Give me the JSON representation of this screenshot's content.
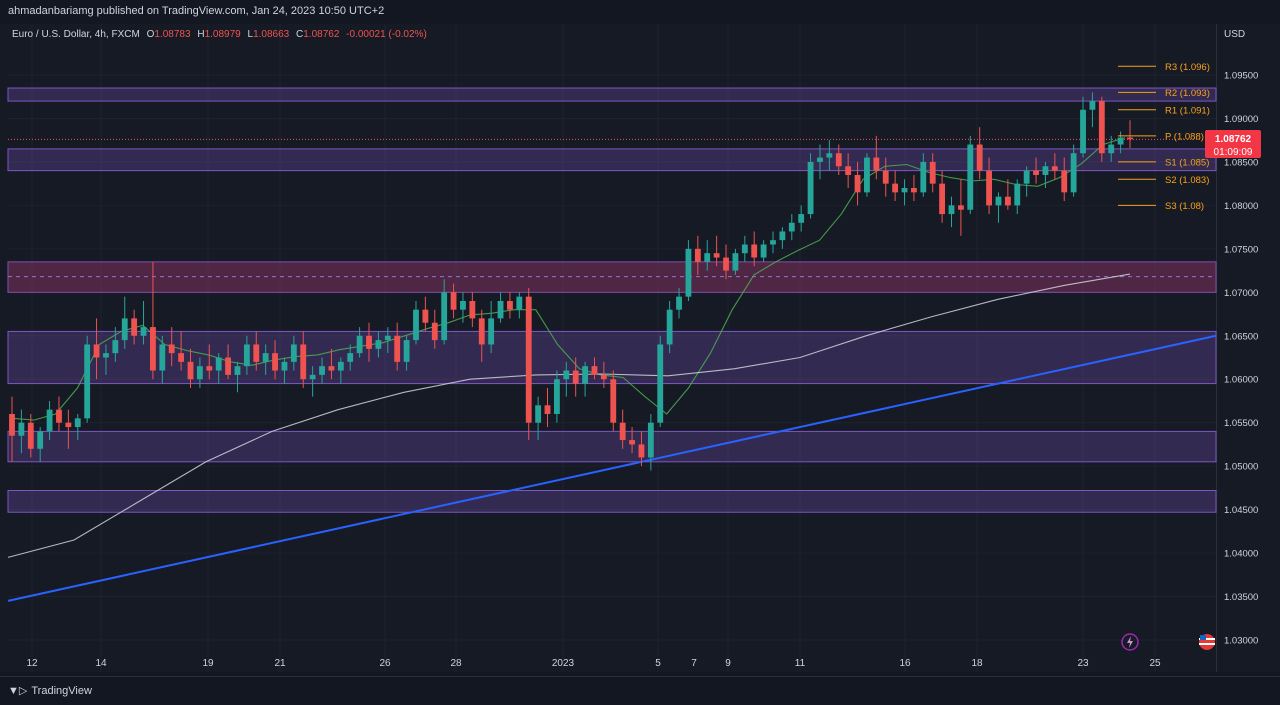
{
  "header": {
    "published_line": "ahmadanbariamg published on TradingView.com, Jan 24, 2023 10:50 UTC+2"
  },
  "legend": {
    "symbol": "Euro / U.S. Dollar, 4h, FXCM",
    "o_label": "O",
    "o_value": "1.08783",
    "h_label": "H",
    "h_value": "1.08979",
    "l_label": "L",
    "l_value": "1.08663",
    "c_label": "C",
    "c_value": "1.08762",
    "change": "-0.00021 (-0.02%)"
  },
  "axis": {
    "currency": "USD",
    "price_labels": [
      "1.09500",
      "1.09000",
      "1.08500",
      "1.08000",
      "1.07500",
      "1.07000",
      "1.06500",
      "1.06000",
      "1.05500",
      "1.05000",
      "1.04500",
      "1.04000",
      "1.03500",
      "1.03000"
    ],
    "time_labels": [
      "12",
      "14",
      "19",
      "21",
      "26",
      "28",
      "2023",
      "5",
      "7",
      "9",
      "11",
      "16",
      "18",
      "23",
      "25"
    ],
    "last_price": "1.08762",
    "countdown": "01:09:09"
  },
  "pivots": [
    {
      "label": "R3 (1.096)",
      "value": 1.096
    },
    {
      "label": "R2 (1.093)",
      "value": 1.093
    },
    {
      "label": "R1 (1.091)",
      "value": 1.091
    },
    {
      "label": "P (1.088)",
      "value": 1.088
    },
    {
      "label": "S1 (1.085)",
      "value": 1.085
    },
    {
      "label": "S2 (1.083)",
      "value": 1.083
    },
    {
      "label": "S3 (1.08)",
      "value": 1.08
    }
  ],
  "footer": {
    "brand": "TradingView"
  },
  "colors": {
    "bull": "#26a69a",
    "bear": "#ef5350",
    "zone": "#7e57c2",
    "trendline": "#2962ff",
    "ma_fast": "#4caf50",
    "ma_slow": "#d1d4dc",
    "pivot": "#f7a21b",
    "price_tag": "#f23645"
  },
  "chart_data": {
    "type": "candlestick",
    "timeframe": "4h",
    "symbol": "EURUSD",
    "ylim": [
      1.0285,
      1.099
    ],
    "x_ticks": [
      "12",
      "14",
      "19",
      "21",
      "26",
      "28",
      "2023",
      "5",
      "7",
      "9",
      "11",
      "16",
      "18",
      "23",
      "25"
    ],
    "candles": [
      [
        1.056,
        1.058,
        1.0505,
        1.0535
      ],
      [
        1.0535,
        1.0565,
        1.0515,
        1.055
      ],
      [
        1.055,
        1.056,
        1.051,
        1.052
      ],
      [
        1.052,
        1.0545,
        1.0505,
        1.054
      ],
      [
        1.054,
        1.0575,
        1.053,
        1.0565
      ],
      [
        1.0565,
        1.058,
        1.054,
        1.055
      ],
      [
        1.055,
        1.0565,
        1.052,
        1.0545
      ],
      [
        1.0545,
        1.056,
        1.053,
        1.0555
      ],
      [
        1.0555,
        1.065,
        1.055,
        1.064
      ],
      [
        1.064,
        1.067,
        1.06,
        1.0625
      ],
      [
        1.0625,
        1.064,
        1.0605,
        1.063
      ],
      [
        1.063,
        1.066,
        1.062,
        1.0645
      ],
      [
        1.0645,
        1.0695,
        1.0635,
        1.067
      ],
      [
        1.067,
        1.068,
        1.064,
        1.065
      ],
      [
        1.065,
        1.069,
        1.064,
        1.066
      ],
      [
        1.066,
        1.0735,
        1.06,
        1.061
      ],
      [
        1.061,
        1.065,
        1.0595,
        1.064
      ],
      [
        1.064,
        1.066,
        1.0615,
        1.063
      ],
      [
        1.063,
        1.0655,
        1.061,
        1.062
      ],
      [
        1.062,
        1.0635,
        1.059,
        1.06
      ],
      [
        1.06,
        1.0625,
        1.059,
        1.0615
      ],
      [
        1.0615,
        1.064,
        1.06,
        1.061
      ],
      [
        1.061,
        1.063,
        1.0595,
        1.0625
      ],
      [
        1.0625,
        1.064,
        1.06,
        1.0605
      ],
      [
        1.0605,
        1.062,
        1.0585,
        1.0615
      ],
      [
        1.0615,
        1.065,
        1.0605,
        1.064
      ],
      [
        1.064,
        1.0655,
        1.061,
        1.062
      ],
      [
        1.062,
        1.064,
        1.0605,
        1.063
      ],
      [
        1.063,
        1.0645,
        1.06,
        1.061
      ],
      [
        1.061,
        1.0625,
        1.0595,
        1.062
      ],
      [
        1.062,
        1.065,
        1.061,
        1.064
      ],
      [
        1.064,
        1.0655,
        1.059,
        1.06
      ],
      [
        1.06,
        1.0615,
        1.058,
        1.0605
      ],
      [
        1.0605,
        1.0625,
        1.0595,
        1.0615
      ],
      [
        1.0615,
        1.0635,
        1.06,
        1.061
      ],
      [
        1.061,
        1.0625,
        1.0595,
        1.062
      ],
      [
        1.062,
        1.064,
        1.061,
        1.063
      ],
      [
        1.063,
        1.066,
        1.0625,
        1.065
      ],
      [
        1.065,
        1.0665,
        1.062,
        1.0635
      ],
      [
        1.0635,
        1.0655,
        1.0625,
        1.0645
      ],
      [
        1.0645,
        1.066,
        1.063,
        1.065
      ],
      [
        1.065,
        1.0665,
        1.061,
        1.062
      ],
      [
        1.062,
        1.065,
        1.061,
        1.0645
      ],
      [
        1.0645,
        1.069,
        1.064,
        1.068
      ],
      [
        1.068,
        1.0695,
        1.0655,
        1.0665
      ],
      [
        1.0665,
        1.068,
        1.0635,
        1.0645
      ],
      [
        1.0645,
        1.0715,
        1.064,
        1.07
      ],
      [
        1.07,
        1.071,
        1.067,
        1.068
      ],
      [
        1.068,
        1.07,
        1.0665,
        1.069
      ],
      [
        1.069,
        1.07,
        1.066,
        1.067
      ],
      [
        1.067,
        1.068,
        1.062,
        1.064
      ],
      [
        1.064,
        1.069,
        1.063,
        1.067
      ],
      [
        1.067,
        1.07,
        1.0665,
        1.069
      ],
      [
        1.069,
        1.07,
        1.067,
        1.068
      ],
      [
        1.068,
        1.07,
        1.067,
        1.0695
      ],
      [
        1.0695,
        1.0705,
        1.053,
        1.055
      ],
      [
        1.055,
        1.058,
        1.053,
        1.057
      ],
      [
        1.057,
        1.059,
        1.0545,
        1.056
      ],
      [
        1.056,
        1.061,
        1.055,
        1.06
      ],
      [
        1.06,
        1.062,
        1.058,
        1.061
      ],
      [
        1.061,
        1.0625,
        1.058,
        1.0595
      ],
      [
        1.0595,
        1.062,
        1.058,
        1.0615
      ],
      [
        1.0615,
        1.0625,
        1.06,
        1.0605
      ],
      [
        1.0605,
        1.062,
        1.059,
        1.06
      ],
      [
        1.06,
        1.061,
        1.054,
        1.055
      ],
      [
        1.055,
        1.0565,
        1.052,
        1.053
      ],
      [
        1.053,
        1.0545,
        1.0515,
        1.0525
      ],
      [
        1.0525,
        1.054,
        1.05,
        1.051
      ],
      [
        1.051,
        1.056,
        1.0495,
        1.055
      ],
      [
        1.055,
        1.065,
        1.0545,
        1.064
      ],
      [
        1.064,
        1.069,
        1.063,
        1.068
      ],
      [
        1.068,
        1.0705,
        1.067,
        1.0695
      ],
      [
        1.0695,
        1.076,
        1.069,
        1.075
      ],
      [
        1.075,
        1.0765,
        1.072,
        1.0735
      ],
      [
        1.0735,
        1.076,
        1.0725,
        1.0745
      ],
      [
        1.0745,
        1.0765,
        1.073,
        1.074
      ],
      [
        1.074,
        1.0755,
        1.0715,
        1.0725
      ],
      [
        1.0725,
        1.075,
        1.072,
        1.0745
      ],
      [
        1.0745,
        1.0765,
        1.0735,
        1.0755
      ],
      [
        1.0755,
        1.077,
        1.073,
        1.074
      ],
      [
        1.074,
        1.076,
        1.0735,
        1.0755
      ],
      [
        1.0755,
        1.077,
        1.0745,
        1.076
      ],
      [
        1.076,
        1.0775,
        1.075,
        1.077
      ],
      [
        1.077,
        1.079,
        1.076,
        1.078
      ],
      [
        1.078,
        1.08,
        1.077,
        1.079
      ],
      [
        1.079,
        1.086,
        1.0785,
        1.085
      ],
      [
        1.085,
        1.087,
        1.083,
        1.0855
      ],
      [
        1.0855,
        1.0875,
        1.084,
        1.086
      ],
      [
        1.086,
        1.087,
        1.0835,
        1.0845
      ],
      [
        1.0845,
        1.086,
        1.082,
        1.0835
      ],
      [
        1.0835,
        1.085,
        1.08,
        1.0815
      ],
      [
        1.0815,
        1.086,
        1.081,
        1.0855
      ],
      [
        1.0855,
        1.088,
        1.083,
        1.084
      ],
      [
        1.084,
        1.0855,
        1.081,
        1.0825
      ],
      [
        1.0825,
        1.084,
        1.0805,
        1.0815
      ],
      [
        1.0815,
        1.083,
        1.08,
        1.082
      ],
      [
        1.082,
        1.0835,
        1.0805,
        1.0815
      ],
      [
        1.0815,
        1.086,
        1.081,
        1.085
      ],
      [
        1.085,
        1.086,
        1.0815,
        1.0825
      ],
      [
        1.0825,
        1.084,
        1.078,
        1.079
      ],
      [
        1.079,
        1.081,
        1.0775,
        1.08
      ],
      [
        1.08,
        1.083,
        1.0765,
        1.0795
      ],
      [
        1.0795,
        1.088,
        1.079,
        1.087
      ],
      [
        1.087,
        1.089,
        1.083,
        1.084
      ],
      [
        1.084,
        1.0855,
        1.079,
        1.08
      ],
      [
        1.08,
        1.0815,
        1.078,
        1.081
      ],
      [
        1.081,
        1.083,
        1.0795,
        1.08
      ],
      [
        1.08,
        1.083,
        1.079,
        1.0825
      ],
      [
        1.0825,
        1.0845,
        1.081,
        1.084
      ],
      [
        1.084,
        1.0855,
        1.0825,
        1.0835
      ],
      [
        1.0835,
        1.085,
        1.082,
        1.0845
      ],
      [
        1.0845,
        1.086,
        1.083,
        1.084
      ],
      [
        1.084,
        1.0855,
        1.0805,
        1.0815
      ],
      [
        1.0815,
        1.087,
        1.081,
        1.086
      ],
      [
        1.086,
        1.0925,
        1.0855,
        1.091
      ],
      [
        1.091,
        1.093,
        1.089,
        1.092
      ],
      [
        1.092,
        1.0925,
        1.085,
        1.086
      ],
      [
        1.086,
        1.088,
        1.085,
        1.087
      ],
      [
        1.087,
        1.0885,
        1.086,
        1.0878
      ],
      [
        1.0878,
        1.0898,
        1.0866,
        1.0876
      ]
    ],
    "moving_averages": [
      {
        "kind": "fast",
        "values": [
          1.0555,
          1.0553,
          1.056,
          1.059,
          1.064,
          1.0655,
          1.0662,
          1.064,
          1.0633,
          1.0628,
          1.062,
          1.0616,
          1.0622,
          1.0626,
          1.0628,
          1.0634,
          1.0638,
          1.0642,
          1.065,
          1.0658,
          1.0665,
          1.0674,
          1.0676,
          1.068,
          1.068,
          1.064,
          1.0612,
          1.0605,
          1.0602,
          1.058,
          1.056,
          1.059,
          1.063,
          1.068,
          1.072,
          1.0735,
          1.0748,
          1.076,
          1.079,
          1.083,
          1.0845,
          1.0847,
          1.0838,
          1.0832,
          1.0828,
          1.083,
          1.0824,
          1.0822,
          1.0832,
          1.0848,
          1.087,
          1.0878
        ]
      },
      {
        "kind": "slow",
        "values": [
          1.0395,
          1.0415,
          1.046,
          1.0505,
          1.054,
          1.0565,
          1.0585,
          1.06,
          1.0605,
          1.0606,
          1.0604,
          1.0612,
          1.0625,
          1.065,
          1.0672,
          1.0692,
          1.0708,
          1.0721
        ]
      }
    ],
    "trendline": {
      "start": 1.0345,
      "end": 1.065
    },
    "zones": [
      {
        "low": 1.092,
        "high": 1.0935
      },
      {
        "low": 1.084,
        "high": 1.0865
      },
      {
        "low": 1.07,
        "high": 1.0735
      },
      {
        "low": 1.0595,
        "high": 1.0655
      },
      {
        "low": 1.0505,
        "high": 1.054
      },
      {
        "low": 1.0447,
        "high": 1.0472
      }
    ],
    "dashed_levels": [
      1.0876,
      1.0718
    ]
  }
}
